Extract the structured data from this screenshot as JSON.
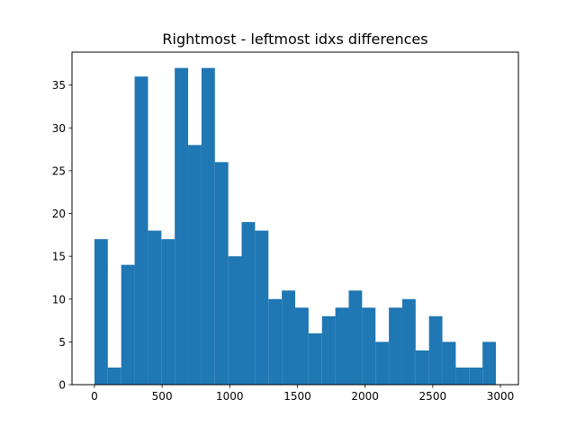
{
  "chart_data": {
    "type": "bar",
    "title": "Rightmost - leftmost idxs differences",
    "xlabel": "",
    "ylabel": "",
    "bin_start": 0,
    "bin_width": 98.9,
    "values": [
      17,
      2,
      14,
      36,
      18,
      17,
      37,
      28,
      37,
      26,
      15,
      19,
      18,
      10,
      11,
      9,
      6,
      8,
      9,
      11,
      9,
      5,
      9,
      10,
      4,
      8,
      5,
      2,
      2,
      5
    ],
    "xlim": [
      -166,
      3133
    ],
    "ylim": [
      0,
      38.85
    ],
    "xticks": [
      0,
      500,
      1000,
      1500,
      2000,
      2500,
      3000
    ],
    "xtick_labels": [
      "0",
      "500",
      "1000",
      "1500",
      "2000",
      "2500",
      "3000"
    ],
    "yticks": [
      0,
      5,
      10,
      15,
      20,
      25,
      30,
      35
    ],
    "ytick_labels": [
      "0",
      "5",
      "10",
      "15",
      "20",
      "25",
      "30",
      "35"
    ],
    "bar_color": "#1f77b4",
    "grid": false,
    "legend": "none"
  }
}
